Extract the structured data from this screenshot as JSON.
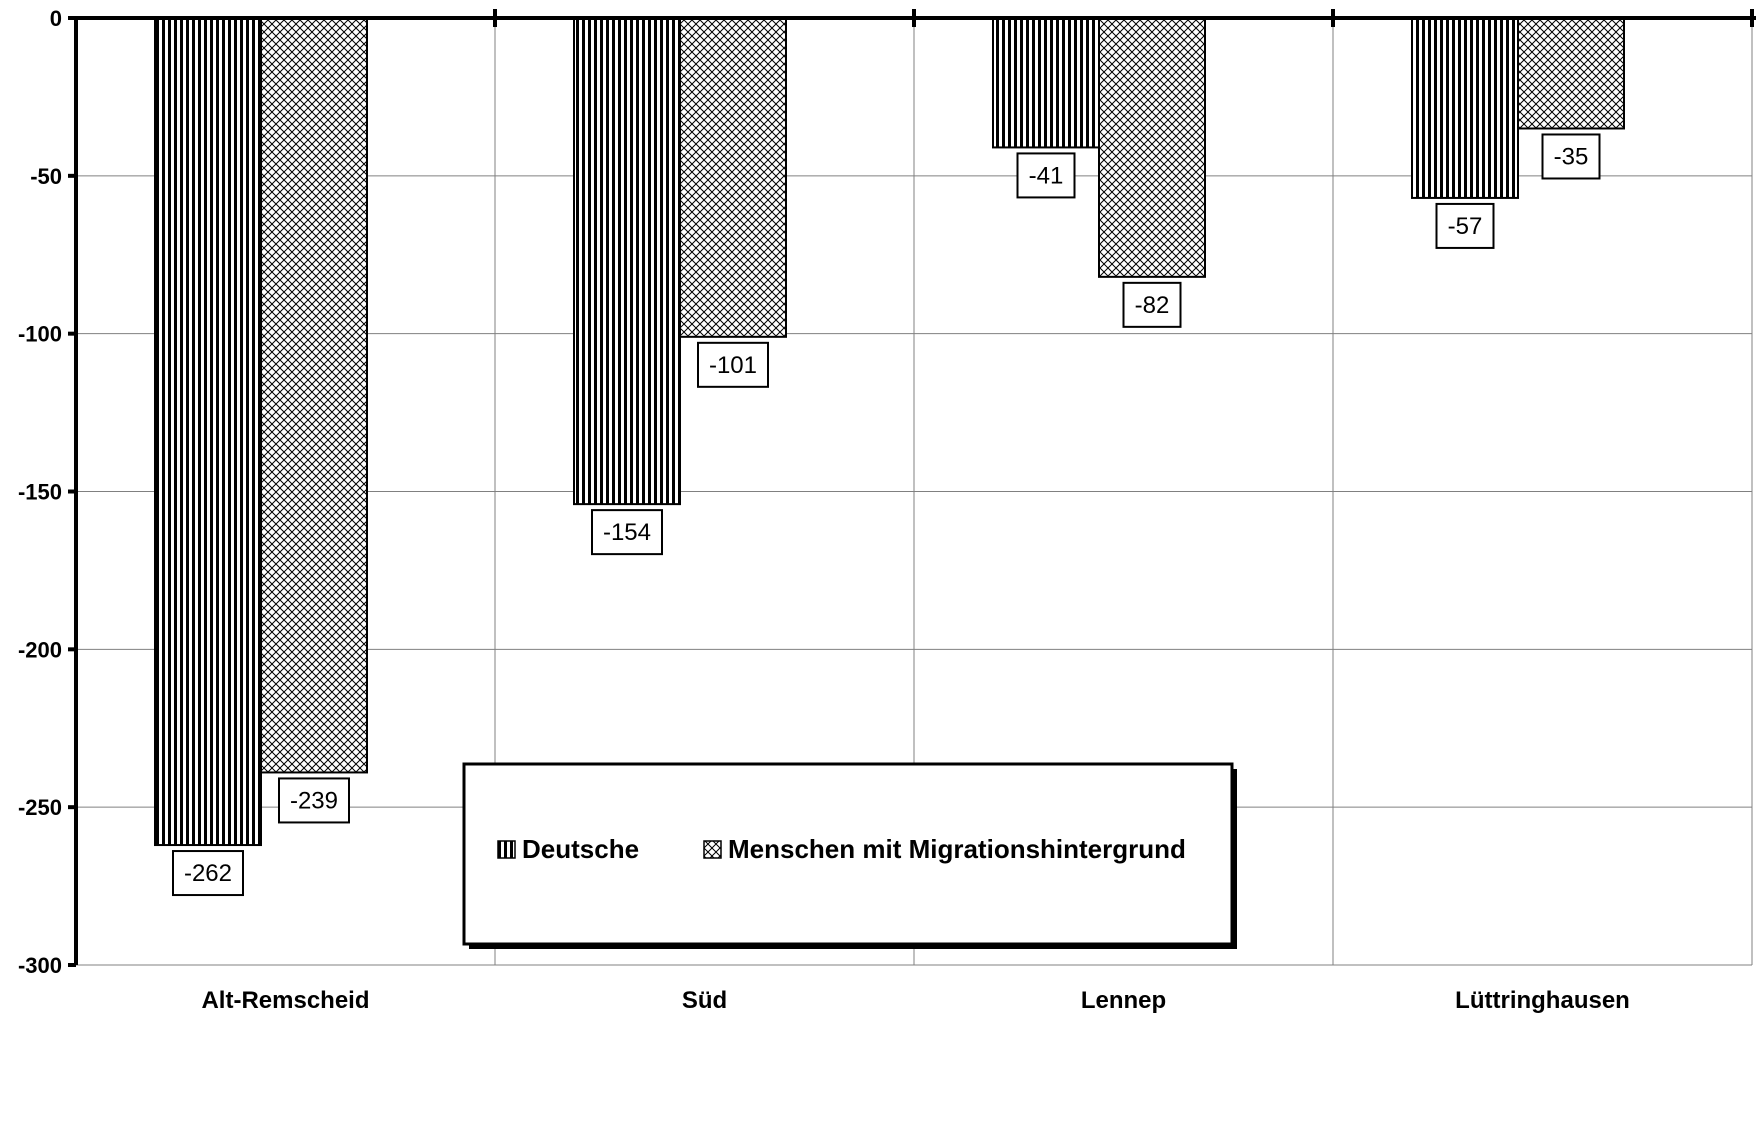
{
  "chart_data": {
    "type": "bar",
    "categories": [
      "Alt-Remscheid",
      "Süd",
      "Lennep",
      "Lüttringhausen"
    ],
    "series": [
      {
        "name": "Deutsche",
        "values": [
          -262,
          -154,
          -41,
          -57
        ],
        "pattern": "vertical-stripes"
      },
      {
        "name": "Menschen mit Migrationshintergrund",
        "values": [
          -239,
          -101,
          -82,
          -35
        ],
        "pattern": "crosshatch"
      }
    ],
    "data_labels": [
      [
        "-262",
        "-154",
        "-41",
        "-57"
      ],
      [
        "-239",
        "-101",
        "-82",
        "-35"
      ]
    ],
    "ylim": [
      -300,
      0
    ],
    "yticks": [
      0,
      -50,
      -100,
      -150,
      -200,
      -250,
      -300
    ],
    "ytick_labels": [
      "0",
      "-50",
      "-100",
      "-150",
      "-200",
      "-250",
      "-300"
    ],
    "grid": true,
    "legend": {
      "placement": "center-bottom",
      "entries": [
        "Deutsche",
        "Menschen mit Migrationshintergrund"
      ]
    },
    "colors": {
      "bar_fill": "#ffffff",
      "pattern_ink": "#000000",
      "grid": "#808080",
      "axis": "#000000"
    }
  }
}
